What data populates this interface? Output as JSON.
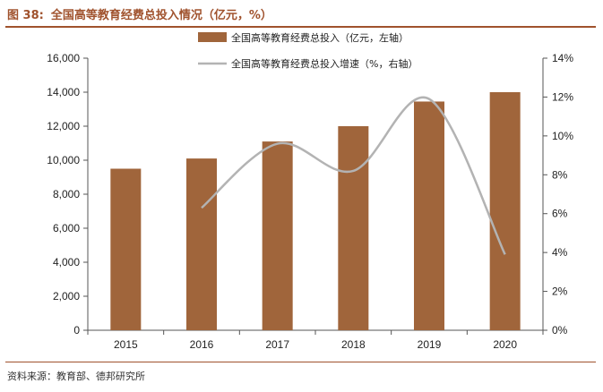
{
  "figure": {
    "number": "图 38:",
    "title": "全国高等教育经费总投入情况（亿元，%）"
  },
  "source": "资料来源：教育部、德邦研究所",
  "colors": {
    "title": "#a0522d",
    "bar": "#a0653b",
    "line": "#b3b3b3"
  },
  "chart_data": {
    "type": "bar",
    "title": "全国高等教育经费总投入情况（亿元，%）",
    "categories": [
      "2015",
      "2016",
      "2017",
      "2018",
      "2019",
      "2020"
    ],
    "series": [
      {
        "name": "全国高等教育经费总投入（亿元，左轴）",
        "type": "bar",
        "axis": "left",
        "values": [
          9500,
          10100,
          11100,
          12000,
          13450,
          14000
        ]
      },
      {
        "name": "全国高等教育经费总投入增速（%，右轴）",
        "type": "line",
        "smooth": true,
        "axis": "right",
        "values": [
          null,
          6.3,
          9.6,
          8.2,
          11.9,
          3.9
        ]
      }
    ],
    "y_left": {
      "lim": [
        0,
        16000
      ],
      "ticks": [
        "0",
        "2,000",
        "4,000",
        "6,000",
        "8,000",
        "10,000",
        "12,000",
        "14,000",
        "16,000"
      ]
    },
    "y_right": {
      "lim": [
        0,
        14
      ],
      "ticks": [
        "0%",
        "2%",
        "4%",
        "6%",
        "8%",
        "10%",
        "12%",
        "14%"
      ]
    },
    "legend_position": "top-center",
    "grid": false
  }
}
